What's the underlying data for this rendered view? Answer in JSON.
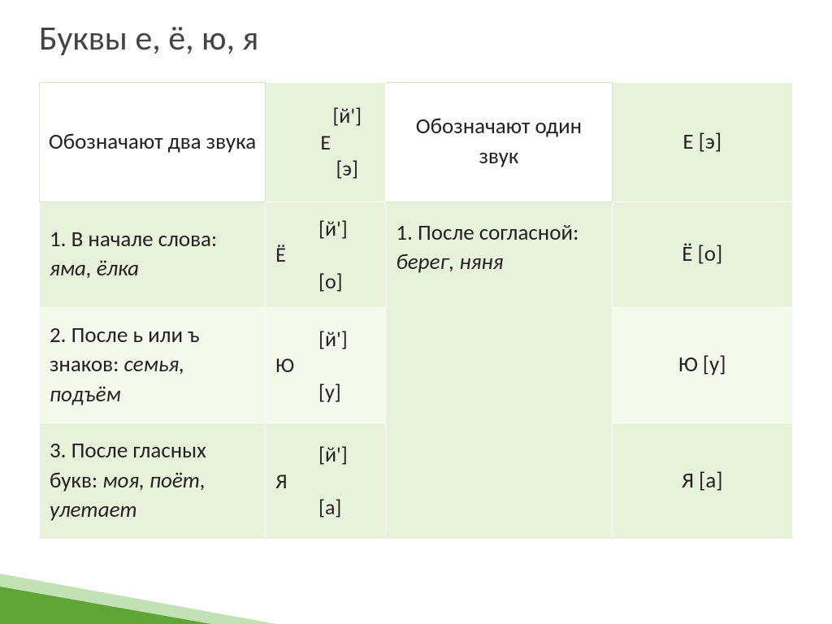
{
  "title": "Буквы е, ё, ю, я",
  "header": {
    "two_sounds_label": "Обозначают два звука",
    "two_sounds_first": "         [й']\nЕ\n         [э]",
    "one_sound_label": "Обозначают один звук",
    "one_sound_first": "Е [э]"
  },
  "rows": [
    {
      "desc_prefix": "1. В начале слова:",
      "desc_examples": "яма, ёлка",
      "phon": "         [й']\nЁ\n         [о]",
      "single": "Ё [о]"
    },
    {
      "desc_prefix": "2. После ь или ъ знаков: ",
      "desc_examples": "семья, подъём",
      "phon": "         [й']\nЮ\n         [у]",
      "single": "Ю [у]"
    },
    {
      "desc_prefix": "3. После гласных букв: ",
      "desc_examples": "моя, поёт, улетает",
      "phon": "         [й']\nЯ\n         [а]",
      "single": "Я [а]"
    }
  ],
  "right_merged_desc_prefix": "1. После согласной: ",
  "right_merged_examples": "берег, няня",
  "colors": {
    "light_green": "#e8f2da",
    "lighter_green": "#f3f9eb",
    "triangle_dark": "#5fa436",
    "triangle_light": "rgba(120,190,90,0.45)"
  },
  "col_widths": [
    "30%",
    "16%",
    "30%",
    "24%"
  ],
  "font": {
    "title_size": 42,
    "cell_size": 27
  }
}
